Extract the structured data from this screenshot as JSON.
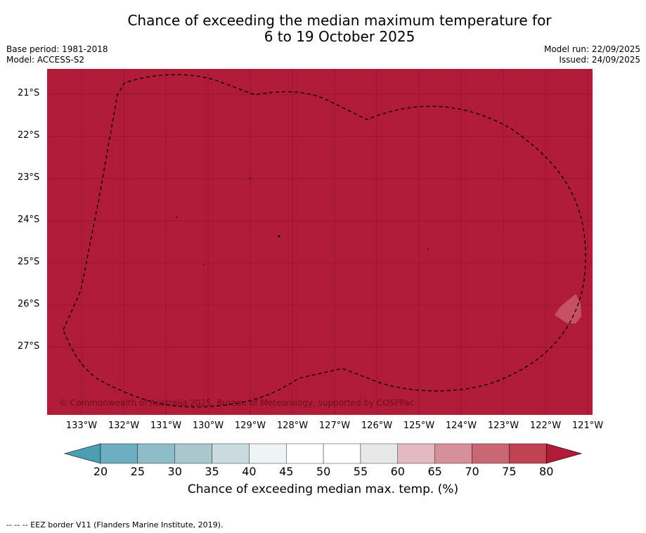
{
  "title": {
    "line1": "Chance of exceeding the median maximum temperature for",
    "line2": "6 to 19 October 2025"
  },
  "meta": {
    "base_period": "Base period: 1981-2018",
    "model": "Model: ACCESS-S2",
    "model_run": "Model run: 22/09/2025",
    "issued": "Issued: 24/09/2025"
  },
  "map": {
    "lat_labels": [
      "21°S",
      "22°S",
      "23°S",
      "24°S",
      "25°S",
      "26°S",
      "27°S"
    ],
    "lon_labels": [
      "133°W",
      "132°W",
      "131°W",
      "130°W",
      "129°W",
      "128°W",
      "127°W",
      "126°W",
      "125°W",
      "124°W",
      "123°W",
      "122°W",
      "121°W"
    ],
    "credit": "© Commonwealth of Australia 2025, Bureau of Meteorology, supported by COSPPac",
    "fill_color": "#b01c38",
    "patch_color": "#c95a6a"
  },
  "colorbar": {
    "ticks": [
      "20",
      "25",
      "30",
      "35",
      "40",
      "45",
      "50",
      "55",
      "60",
      "65",
      "70",
      "75",
      "80"
    ],
    "colors": [
      "#4aa0b2",
      "#6cafbf",
      "#8ebcc7",
      "#abc7ce",
      "#cadbdf",
      "#eef3f4",
      "#ffffff",
      "#ffffff",
      "#e8e8e8",
      "#e2b9c1",
      "#d69099",
      "#c96874",
      "#bf4152",
      "#b01c38"
    ],
    "label": "Chance of exceeding median max. temp. (%)"
  },
  "footnote": "--  --  -- EEZ border V11 (Flanders Marine Institute, 2019)."
}
